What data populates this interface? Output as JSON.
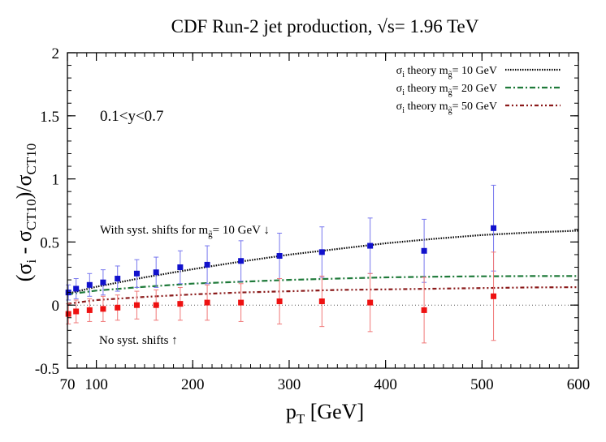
{
  "chart_data": {
    "type": "scatter",
    "title": "CDF Run-2 jet production, √s= 1.96 TeV",
    "xlabel": {
      "main": "p",
      "sub": "T",
      "unit": " [GeV]"
    },
    "ylabel": {
      "a": "(σ",
      "a_sub": "i",
      "b": " -  σ",
      "b_sub": "CT10",
      "c": ")/σ",
      "c_sub": "CT10"
    },
    "xlim": [
      70,
      600
    ],
    "ylim": [
      -0.5,
      2
    ],
    "x_ticks": [
      {
        "value": 70,
        "label": "70"
      },
      {
        "value": 100,
        "label": "100"
      },
      {
        "value": 200,
        "label": "200"
      },
      {
        "value": 300,
        "label": "300"
      },
      {
        "value": 400,
        "label": "400"
      },
      {
        "value": 500,
        "label": "500"
      },
      {
        "value": 600,
        "label": "600"
      }
    ],
    "y_ticks": [
      {
        "value": -0.5,
        "label": "-0.5"
      },
      {
        "value": 0,
        "label": "0"
      },
      {
        "value": 0.5,
        "label": "0.5"
      },
      {
        "value": 1,
        "label": "1"
      },
      {
        "value": 1.5,
        "label": "1.5"
      },
      {
        "value": 2,
        "label": "2"
      }
    ],
    "x_minor_step": 10,
    "y_minor_step": 0.1,
    "grid": false,
    "region_label": "0.1<y<0.7",
    "legend_position": "top-right",
    "legend": [
      {
        "pre": "σ",
        "sub": "i",
        "mid": " theory m",
        "msub": "g̃",
        "post": "= 10 GeV",
        "color": "#000000",
        "dash": "1.5,1.5",
        "width": 2.2
      },
      {
        "pre": "σ",
        "sub": "i",
        "mid": " theory m",
        "msub": "g̃",
        "post": "= 20 GeV",
        "color": "#1f7a3a",
        "dash": "7,3,2,3",
        "width": 2.2
      },
      {
        "pre": "σ",
        "sub": "i",
        "mid": " theory m",
        "msub": "g̃",
        "post": "= 50 GeV",
        "color": "#8b1a1a",
        "dash": "5,3,2,3,2,3",
        "width": 2.2
      }
    ],
    "curves": [
      {
        "x": [
          70,
          100,
          150,
          200,
          250,
          300,
          350,
          400,
          450,
          500,
          550,
          600
        ],
        "y": [
          0.09,
          0.145,
          0.22,
          0.285,
          0.345,
          0.4,
          0.445,
          0.49,
          0.525,
          0.555,
          0.575,
          0.59
        ]
      },
      {
        "x": [
          70,
          100,
          150,
          200,
          250,
          300,
          350,
          400,
          450,
          500,
          550,
          600
        ],
        "y": [
          0.085,
          0.115,
          0.145,
          0.17,
          0.185,
          0.2,
          0.21,
          0.22,
          0.225,
          0.228,
          0.23,
          0.23
        ]
      },
      {
        "x": [
          70,
          100,
          150,
          200,
          250,
          300,
          350,
          400,
          450,
          500,
          550,
          600
        ],
        "y": [
          0.01,
          0.04,
          0.065,
          0.085,
          0.1,
          0.11,
          0.12,
          0.125,
          0.13,
          0.135,
          0.14,
          0.142
        ]
      }
    ],
    "zero_line": {
      "y": 0,
      "color": "#555555"
    },
    "series": [
      {
        "name": "With syst. shifts for m",
        "color": "#1111cc",
        "errcolor": "#7777ee",
        "x": [
          71,
          79,
          93,
          107,
          122,
          142,
          162,
          187,
          215,
          250,
          290,
          334,
          384,
          440,
          512
        ],
        "y": [
          0.1,
          0.13,
          0.16,
          0.18,
          0.21,
          0.25,
          0.26,
          0.3,
          0.32,
          0.35,
          0.39,
          0.42,
          0.47,
          0.43,
          0.61
        ],
        "err": [
          0.06,
          0.08,
          0.09,
          0.1,
          0.1,
          0.11,
          0.12,
          0.13,
          0.15,
          0.16,
          0.18,
          0.2,
          0.22,
          0.25,
          0.34
        ]
      },
      {
        "name": "No syst. shifts",
        "color": "#ee1111",
        "errcolor": "#f07878",
        "x": [
          71,
          79,
          93,
          107,
          122,
          142,
          162,
          187,
          215,
          250,
          290,
          334,
          384,
          440,
          512
        ],
        "y": [
          -0.07,
          -0.05,
          -0.04,
          -0.03,
          -0.02,
          0.0,
          0.0,
          0.01,
          0.02,
          0.02,
          0.03,
          0.03,
          0.02,
          -0.04,
          0.07
        ],
        "err": [
          0.08,
          0.09,
          0.09,
          0.1,
          0.1,
          0.11,
          0.12,
          0.13,
          0.14,
          0.15,
          0.18,
          0.2,
          0.23,
          0.26,
          0.35
        ]
      }
    ],
    "annotations": {
      "with_syst": {
        "text": "With syst. shifts for m",
        "sub": "g̃",
        "post": "= 10 GeV ↓",
        "x": 90,
        "y": 0.57
      },
      "no_syst": {
        "text": "No syst. shifts ↑",
        "x": 90,
        "y": -0.28
      }
    }
  }
}
